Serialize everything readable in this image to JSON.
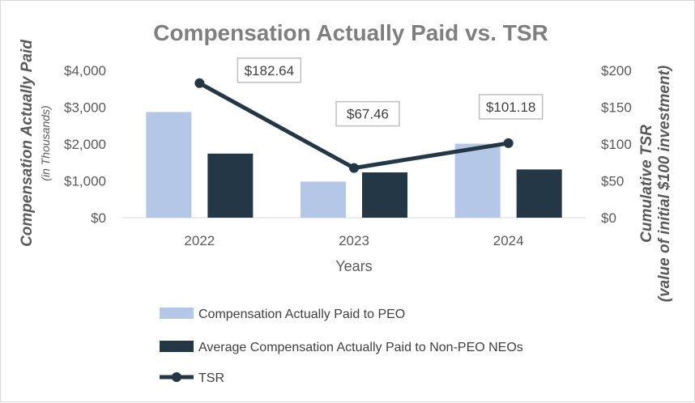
{
  "chart_data": {
    "type": "bar",
    "title": "Compensation Actually Paid vs. TSR",
    "xlabel": "Years",
    "ylabel": "Compensation Actually Paid",
    "ylabel_sub": "(in Thousands)",
    "y2label": "Cumulative TSR",
    "y2label_sub": "(value of initial $100 investment)",
    "categories": [
      "2022",
      "2023",
      "2024"
    ],
    "ylim": [
      0,
      4000
    ],
    "y_ticks": [
      {
        "value": 0,
        "label": "$0"
      },
      {
        "value": 1000,
        "label": "$1,000"
      },
      {
        "value": 2000,
        "label": "$2,000"
      },
      {
        "value": 3000,
        "label": "$3,000"
      },
      {
        "value": 4000,
        "label": "$4,000"
      }
    ],
    "y2lim": [
      0,
      200
    ],
    "y2_ticks": [
      {
        "value": 0,
        "label": "$0"
      },
      {
        "value": 50,
        "label": "$50"
      },
      {
        "value": 100,
        "label": "$100"
      },
      {
        "value": 150,
        "label": "$150"
      },
      {
        "value": 200,
        "label": "$200"
      }
    ],
    "series": [
      {
        "name": "Compensation Actually Paid to PEO",
        "kind": "bar",
        "axis": "left",
        "color": "#b4c7e7",
        "values": [
          2870,
          980,
          2010
        ]
      },
      {
        "name": "Average Compensation Actually Paid to Non-PEO NEOs",
        "kind": "bar",
        "axis": "left",
        "color": "#243746",
        "values": [
          1740,
          1230,
          1310
        ]
      },
      {
        "name": "TSR",
        "kind": "line",
        "axis": "right",
        "color": "#243746",
        "values": [
          182.64,
          67.46,
          101.18
        ],
        "labels": [
          "$182.64",
          "$67.46",
          "$101.18"
        ]
      }
    ],
    "legend_position": "bottom-left"
  }
}
